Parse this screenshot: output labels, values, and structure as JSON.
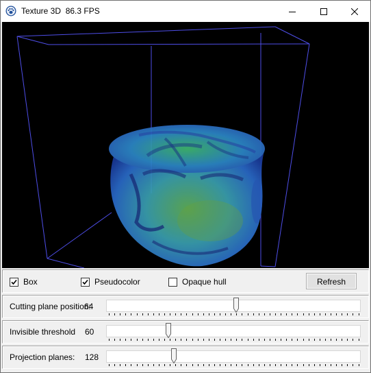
{
  "window": {
    "title": "Texture 3D  86.3 FPS",
    "icon": "paw-icon",
    "controls": [
      "minimize-icon",
      "maximize-icon",
      "close-icon"
    ]
  },
  "options": {
    "box": {
      "label": "Box",
      "checked": true
    },
    "pseudocolor": {
      "label": "Pseudocolor",
      "checked": true
    },
    "opaque_hull": {
      "label": "Opaque hull",
      "checked": false
    },
    "refresh_label": "Refresh"
  },
  "sliders": [
    {
      "label": "Cutting plane position:",
      "value": "64",
      "fraction": 0.51
    },
    {
      "label": "Invisible threshold",
      "value": "60",
      "fraction": 0.24
    },
    {
      "label": "Projection planes:",
      "value": "128",
      "fraction": 0.26
    }
  ],
  "colors": {
    "viewport_bg": "#000000",
    "box_lines": "#4e4ee8",
    "volume_primary": "#2a9ad0",
    "volume_secondary": "#4cc060"
  }
}
